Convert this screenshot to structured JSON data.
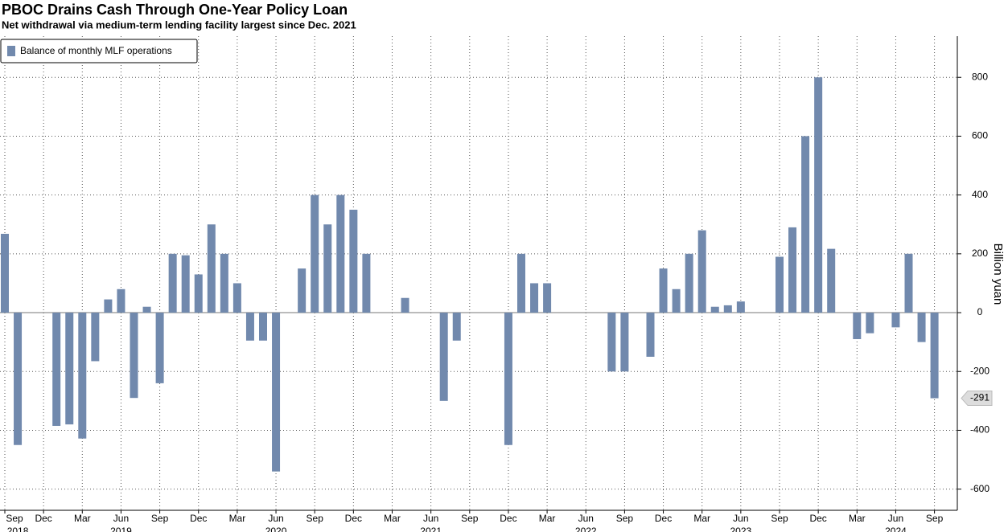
{
  "chart_data": {
    "type": "bar",
    "title": "PBOC Drains Cash Through One-Year Policy Loan",
    "subtitle": "Net withdrawal via medium-term lending facility largest since Dec. 2021",
    "y_axis_label": "Billion yuan",
    "categories": [
      "Sep",
      null,
      null,
      "Dec",
      null,
      null,
      "Mar",
      null,
      null,
      "Jun",
      null,
      null,
      "Sep",
      null,
      null,
      "Dec",
      null,
      null,
      "Mar",
      null,
      null,
      "Jun",
      null,
      null,
      "Sep",
      null,
      null,
      "Dec",
      null,
      null,
      "Mar",
      null,
      null,
      "Jun",
      null,
      null,
      "Sep",
      null,
      null,
      "Dec",
      null,
      null,
      "Mar",
      null,
      null,
      "Jun",
      null,
      null,
      "Sep",
      null,
      null,
      "Dec",
      null,
      null,
      "Mar",
      null,
      null,
      "Jun",
      null,
      null,
      "Sep",
      null,
      null,
      "Dec",
      null,
      null,
      "Mar",
      null,
      null,
      "Jun",
      null,
      null,
      "Sep"
    ],
    "years": [
      "2018",
      "2019",
      "2020",
      "2021",
      "2022",
      "2023",
      "2024"
    ],
    "series": [
      {
        "name": "Balance of monthly MLF operations",
        "color": "#7189ad",
        "values": [
          268,
          -450,
          0,
          0,
          -385,
          -380,
          -428,
          -165,
          45,
          80,
          -290,
          20,
          -240,
          200,
          195,
          130,
          300,
          200,
          100,
          -95,
          -95,
          -540,
          0,
          150,
          400,
          300,
          400,
          350,
          200,
          0,
          0,
          50,
          0,
          0,
          -300,
          -95,
          0,
          0,
          0,
          -450,
          200,
          100,
          100,
          0,
          0,
          0,
          0,
          -200,
          -200,
          0,
          -150,
          150,
          80,
          200,
          280,
          20,
          25,
          38,
          0,
          0,
          190,
          290,
          600,
          800,
          217,
          0,
          -90,
          -70,
          0,
          -50,
          200,
          -100,
          -291
        ]
      }
    ],
    "ylim": [
      -672,
      940
    ],
    "yticks": [
      -600,
      -400,
      -200,
      0,
      200,
      400,
      600,
      800
    ],
    "grid": true
  }
}
